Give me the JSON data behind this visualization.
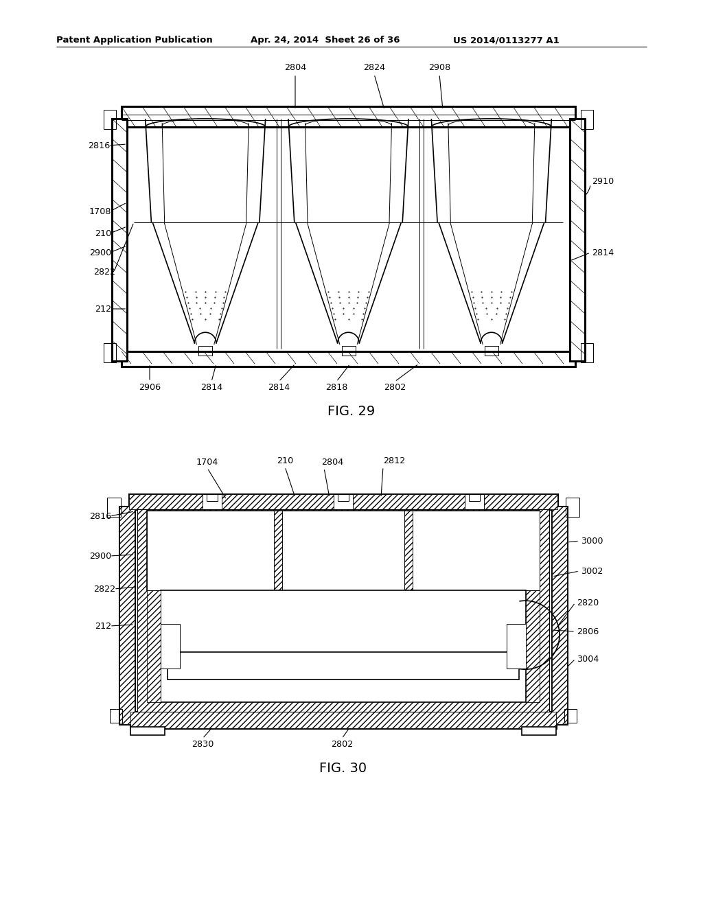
{
  "bg_color": "#ffffff",
  "line_color": "#000000",
  "header_text": "Patent Application Publication",
  "header_date": "Apr. 24, 2014  Sheet 26 of 36",
  "header_patent": "US 2014/0113277 A1",
  "fig29_title": "FIG. 29",
  "fig30_title": "FIG. 30",
  "page_width": 1.0,
  "page_height": 1.0
}
